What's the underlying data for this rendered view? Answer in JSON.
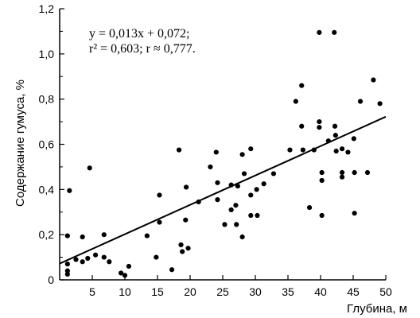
{
  "chart_data": {
    "type": "scatter",
    "xlabel": "Глубина, м",
    "ylabel": "Содержание гумуса, %",
    "xlim": [
      0,
      50
    ],
    "ylim": [
      0,
      1.2
    ],
    "x_ticks": [
      "5",
      "10",
      "15",
      "20",
      "25",
      "30",
      "35",
      "40",
      "45",
      "50"
    ],
    "y_ticks": [
      "0",
      "0,2",
      "0,4",
      "0,6",
      "0,8",
      "1,0",
      "1,2"
    ],
    "grid": false,
    "annotation": {
      "line1": "y = 0,013x + 0,072;",
      "line2": "r² = 0,603; r ≈ 0,777."
    },
    "trendline": {
      "slope": 0.013,
      "intercept": 0.072,
      "x_range": [
        0,
        50
      ]
    },
    "points": [
      {
        "x": 1.2,
        "y": 0.195
      },
      {
        "x": 1.2,
        "y": 0.07
      },
      {
        "x": 1.2,
        "y": 0.04
      },
      {
        "x": 1.2,
        "y": 0.025
      },
      {
        "x": 1.5,
        "y": 0.395
      },
      {
        "x": 2.5,
        "y": 0.09
      },
      {
        "x": 3.5,
        "y": 0.19
      },
      {
        "x": 3.5,
        "y": 0.08
      },
      {
        "x": 4.3,
        "y": 0.095
      },
      {
        "x": 4.6,
        "y": 0.495
      },
      {
        "x": 5.5,
        "y": 0.11
      },
      {
        "x": 6.8,
        "y": 0.2
      },
      {
        "x": 6.8,
        "y": 0.1
      },
      {
        "x": 7.6,
        "y": 0.08
      },
      {
        "x": 9.4,
        "y": 0.03
      },
      {
        "x": 10.0,
        "y": 0.02
      },
      {
        "x": 10.6,
        "y": 0.06
      },
      {
        "x": 13.4,
        "y": 0.195
      },
      {
        "x": 14.8,
        "y": 0.1
      },
      {
        "x": 15.3,
        "y": 0.375
      },
      {
        "x": 15.3,
        "y": 0.255
      },
      {
        "x": 17.2,
        "y": 0.045
      },
      {
        "x": 18.3,
        "y": 0.575
      },
      {
        "x": 18.6,
        "y": 0.155
      },
      {
        "x": 18.8,
        "y": 0.125
      },
      {
        "x": 19.3,
        "y": 0.265
      },
      {
        "x": 19.4,
        "y": 0.41
      },
      {
        "x": 19.7,
        "y": 0.14
      },
      {
        "x": 21.3,
        "y": 0.345
      },
      {
        "x": 23.1,
        "y": 0.5
      },
      {
        "x": 24.0,
        "y": 0.565
      },
      {
        "x": 24.2,
        "y": 0.43
      },
      {
        "x": 24.2,
        "y": 0.355
      },
      {
        "x": 25.3,
        "y": 0.245
      },
      {
        "x": 26.3,
        "y": 0.42
      },
      {
        "x": 26.3,
        "y": 0.31
      },
      {
        "x": 27.0,
        "y": 0.33
      },
      {
        "x": 27.1,
        "y": 0.245
      },
      {
        "x": 27.3,
        "y": 0.415
      },
      {
        "x": 28.0,
        "y": 0.555
      },
      {
        "x": 28.0,
        "y": 0.19
      },
      {
        "x": 28.3,
        "y": 0.47
      },
      {
        "x": 29.3,
        "y": 0.58
      },
      {
        "x": 29.3,
        "y": 0.375
      },
      {
        "x": 29.3,
        "y": 0.285
      },
      {
        "x": 30.2,
        "y": 0.4
      },
      {
        "x": 30.3,
        "y": 0.285
      },
      {
        "x": 31.3,
        "y": 0.425
      },
      {
        "x": 32.8,
        "y": 0.47
      },
      {
        "x": 35.3,
        "y": 0.575
      },
      {
        "x": 36.2,
        "y": 0.79
      },
      {
        "x": 37.1,
        "y": 0.86
      },
      {
        "x": 37.1,
        "y": 0.68
      },
      {
        "x": 37.3,
        "y": 0.575
      },
      {
        "x": 38.3,
        "y": 0.32
      },
      {
        "x": 39.0,
        "y": 0.575
      },
      {
        "x": 39.8,
        "y": 1.095
      },
      {
        "x": 39.8,
        "y": 0.7
      },
      {
        "x": 39.8,
        "y": 0.675
      },
      {
        "x": 40.2,
        "y": 0.475
      },
      {
        "x": 40.2,
        "y": 0.44
      },
      {
        "x": 40.2,
        "y": 0.285
      },
      {
        "x": 41.2,
        "y": 0.615
      },
      {
        "x": 42.1,
        "y": 1.095
      },
      {
        "x": 42.2,
        "y": 0.68
      },
      {
        "x": 42.3,
        "y": 0.64
      },
      {
        "x": 42.4,
        "y": 0.57
      },
      {
        "x": 43.3,
        "y": 0.58
      },
      {
        "x": 43.3,
        "y": 0.475
      },
      {
        "x": 43.3,
        "y": 0.455
      },
      {
        "x": 44.2,
        "y": 0.565
      },
      {
        "x": 45.1,
        "y": 0.625
      },
      {
        "x": 45.2,
        "y": 0.475
      },
      {
        "x": 45.2,
        "y": 0.295
      },
      {
        "x": 46.1,
        "y": 0.79
      },
      {
        "x": 47.2,
        "y": 0.475
      },
      {
        "x": 48.1,
        "y": 0.885
      },
      {
        "x": 49.1,
        "y": 0.78
      }
    ]
  }
}
